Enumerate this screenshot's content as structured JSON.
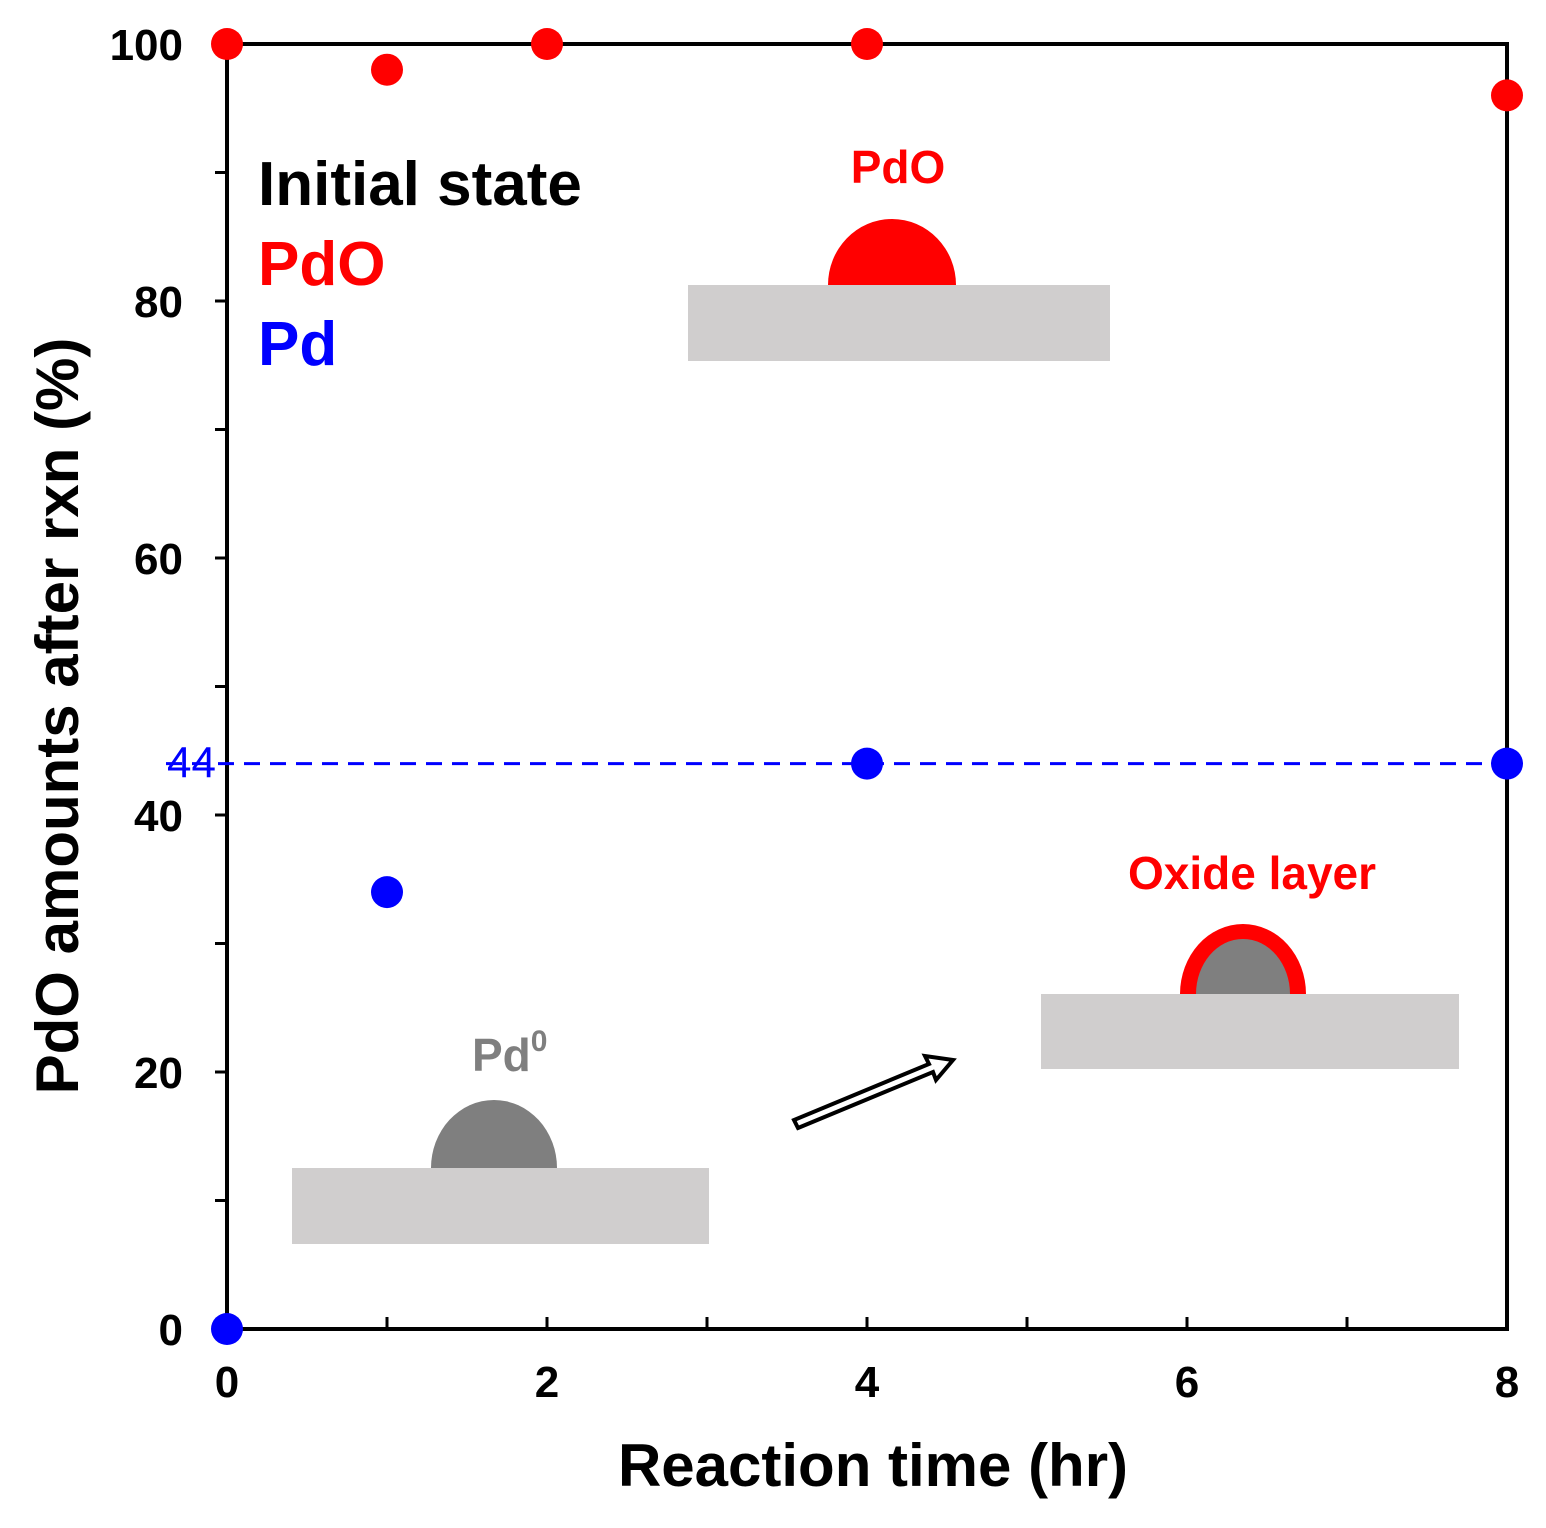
{
  "chart_data": {
    "type": "scatter",
    "xlabel": "Reaction time (hr)",
    "ylabel": "PdO amounts after rxn (%)",
    "xlim": [
      0,
      8
    ],
    "ylim": [
      0,
      100
    ],
    "x_ticks": [
      0,
      2,
      4,
      6,
      8
    ],
    "y_ticks": [
      0,
      20,
      40,
      60,
      80,
      100
    ],
    "grid": false,
    "legend": {
      "title": "Initial state",
      "placement": "top-left",
      "entries": [
        {
          "label": "PdO",
          "color": "#ff0000"
        },
        {
          "label": "Pd",
          "color": "#0000ff"
        }
      ]
    },
    "series": [
      {
        "name": "PdO",
        "color": "#ff0000",
        "x": [
          0,
          1,
          2,
          4,
          8
        ],
        "y": [
          100,
          98,
          100,
          100,
          96
        ]
      },
      {
        "name": "Pd",
        "color": "#0000ff",
        "x": [
          0,
          1,
          4,
          8
        ],
        "y": [
          0,
          34,
          44,
          44
        ]
      }
    ],
    "reference_line": {
      "y": 44,
      "label": "44",
      "style": "dashed",
      "color": "#0000ff"
    },
    "annotations": {
      "pdo_particle": "PdO",
      "pd_particle": "Pd",
      "pd_superscript": "0",
      "oxide_layer": "Oxide layer"
    },
    "colors": {
      "substrate": "#d0cece",
      "pd_metal": "#7f7f7f",
      "oxide": "#ff0000",
      "axis": "#000000"
    }
  }
}
